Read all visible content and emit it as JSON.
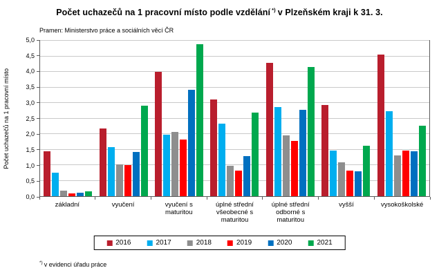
{
  "title": {
    "prefix": "Počet uchazečů na 1 pracovní místo podle vzdělání",
    "footnote_marker": "*)",
    "suffix": "v Plzeňském kraji k 31. 3."
  },
  "source": "Pramen: Ministerstvo práce a sociálních věcí ČR",
  "footnote": {
    "marker": "*)",
    "text": "v evidenci úřadu práce"
  },
  "chart_data": {
    "type": "bar",
    "title": "Počet uchazečů na 1 pracovní místo podle vzdělání *) v Plzeňském kraji k 31. 3.",
    "xlabel": "",
    "ylabel": "Počet uchazečů na 1 pracovní místo",
    "ylim": [
      0,
      5
    ],
    "ytick_step": 0.5,
    "ytick_labels_bottom_up": [
      "0,0",
      "0,5",
      "1,0",
      "1,5",
      "2,0",
      "2,5",
      "3,0",
      "3,5",
      "4,0",
      "4,5",
      "5,0"
    ],
    "grid": true,
    "legend_position": "bottom",
    "categories": [
      "základní",
      "vyučení",
      "vyučení s maturitou",
      "úplné střední všeobecné s maturitou",
      "úplné střední odborné s maturitou",
      "vyšší",
      "vysokoškolské"
    ],
    "series": [
      {
        "name": "2016",
        "color": "#B91E2D",
        "values": [
          1.45,
          2.18,
          4.01,
          3.12,
          4.3,
          2.94,
          4.55
        ]
      },
      {
        "name": "2017",
        "color": "#00AEEF",
        "values": [
          0.75,
          1.58,
          1.98,
          2.33,
          2.87,
          1.46,
          2.73
        ]
      },
      {
        "name": "2018",
        "color": "#8E8E8E",
        "values": [
          0.17,
          1.03,
          2.07,
          0.97,
          1.96,
          1.09,
          1.32
        ]
      },
      {
        "name": "2019",
        "color": "#FF0000",
        "values": [
          0.08,
          0.99,
          1.82,
          0.82,
          1.78,
          0.83,
          1.47
        ]
      },
      {
        "name": "2020",
        "color": "#0070C0",
        "values": [
          0.11,
          1.43,
          3.43,
          1.28,
          2.78,
          0.79,
          1.44
        ]
      },
      {
        "name": "2021",
        "color": "#00A84E",
        "values": [
          0.15,
          2.92,
          4.88,
          2.7,
          4.16,
          1.62,
          2.27
        ]
      }
    ]
  }
}
